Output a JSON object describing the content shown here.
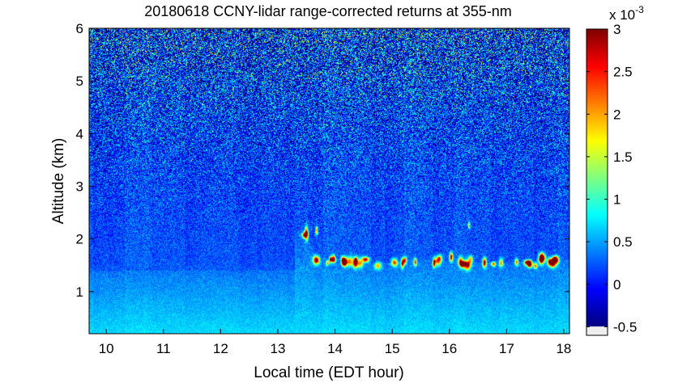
{
  "chart_data": {
    "type": "heatmap",
    "title": "20180618 CCNY-lidar range-corrected returns at 355-nm",
    "xlabel": "Local time (EDT hour)",
    "ylabel": "Altitude (km)",
    "xlim": [
      9.7,
      18.1
    ],
    "ylim": [
      0.2,
      6.0
    ],
    "x_ticks": [
      {
        "value": 10,
        "label": "10"
      },
      {
        "value": 11,
        "label": "11"
      },
      {
        "value": 12,
        "label": "12"
      },
      {
        "value": 13,
        "label": "13"
      },
      {
        "value": 14,
        "label": "14"
      },
      {
        "value": 15,
        "label": "15"
      },
      {
        "value": 16,
        "label": "16"
      },
      {
        "value": 17,
        "label": "17"
      },
      {
        "value": 18,
        "label": "18"
      }
    ],
    "y_ticks": [
      {
        "value": 1,
        "label": "1"
      },
      {
        "value": 2,
        "label": "2"
      },
      {
        "value": 3,
        "label": "3"
      },
      {
        "value": 4,
        "label": "4"
      },
      {
        "value": 5,
        "label": "5"
      },
      {
        "value": 6,
        "label": "6"
      }
    ],
    "colorbar": {
      "colormap": "jet",
      "range": [
        -0.6,
        3.0
      ],
      "exponent_label": "x 10",
      "exponent_power": "-3",
      "ticks": [
        {
          "value": -0.5,
          "label": "-0.5"
        },
        {
          "value": 0,
          "label": "0"
        },
        {
          "value": 0.5,
          "label": "0.5"
        },
        {
          "value": 1,
          "label": "1"
        },
        {
          "value": 1.5,
          "label": "1.5"
        },
        {
          "value": 2,
          "label": "2"
        },
        {
          "value": 2.5,
          "label": "2.5"
        },
        {
          "value": 3,
          "label": "3"
        }
      ]
    },
    "grid": false,
    "features": {
      "boundary_layer_top_km": [
        {
          "x": 13.3,
          "y": 2.15
        },
        {
          "x": 13.5,
          "y": 2.05
        },
        {
          "x": 13.7,
          "y": 1.6
        },
        {
          "x": 14.0,
          "y": 1.55
        },
        {
          "x": 14.5,
          "y": 1.55
        },
        {
          "x": 15.0,
          "y": 1.55
        },
        {
          "x": 15.5,
          "y": 1.6
        },
        {
          "x": 16.0,
          "y": 1.6
        },
        {
          "x": 16.5,
          "y": 1.55
        },
        {
          "x": 17.0,
          "y": 1.55
        },
        {
          "x": 17.5,
          "y": 1.55
        },
        {
          "x": 18.0,
          "y": 1.6
        }
      ],
      "cloud_signal_peak": 3.0
    }
  },
  "colors": {
    "background": "#ffffff",
    "axis": "#000000"
  }
}
